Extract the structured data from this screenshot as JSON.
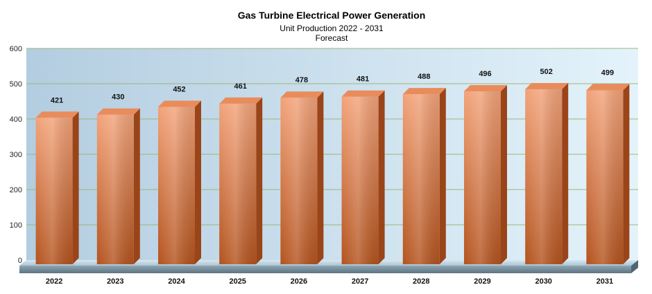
{
  "chart_data": {
    "type": "bar",
    "title": "Gas Turbine Electrical Power Generation",
    "subtitle_lines": [
      "Unit Production 2022 - 2031",
      "Forecast"
    ],
    "categories": [
      "2022",
      "2023",
      "2024",
      "2025",
      "2026",
      "2027",
      "2028",
      "2029",
      "2030",
      "2031"
    ],
    "values": [
      421,
      430,
      452,
      461,
      478,
      481,
      488,
      496,
      502,
      499
    ],
    "data_labels": [
      "421",
      "430",
      "452",
      "461",
      "478",
      "481",
      "488",
      "496",
      "502",
      "499"
    ],
    "y_ticks": [
      "0",
      "100",
      "200",
      "300",
      "400",
      "500",
      "600"
    ],
    "ylim": [
      0,
      600
    ],
    "grid": true,
    "legend": "none",
    "colors": {
      "bar_front_top": "#f2a37a",
      "bar_front_bottom": "#b4531e",
      "bar_side": "#9a4419",
      "bar_top": "#e98c5c",
      "plot_bg_left": "#b3cde0",
      "plot_bg_right": "#e4f3fb",
      "gridline": "#9fb37a"
    }
  }
}
